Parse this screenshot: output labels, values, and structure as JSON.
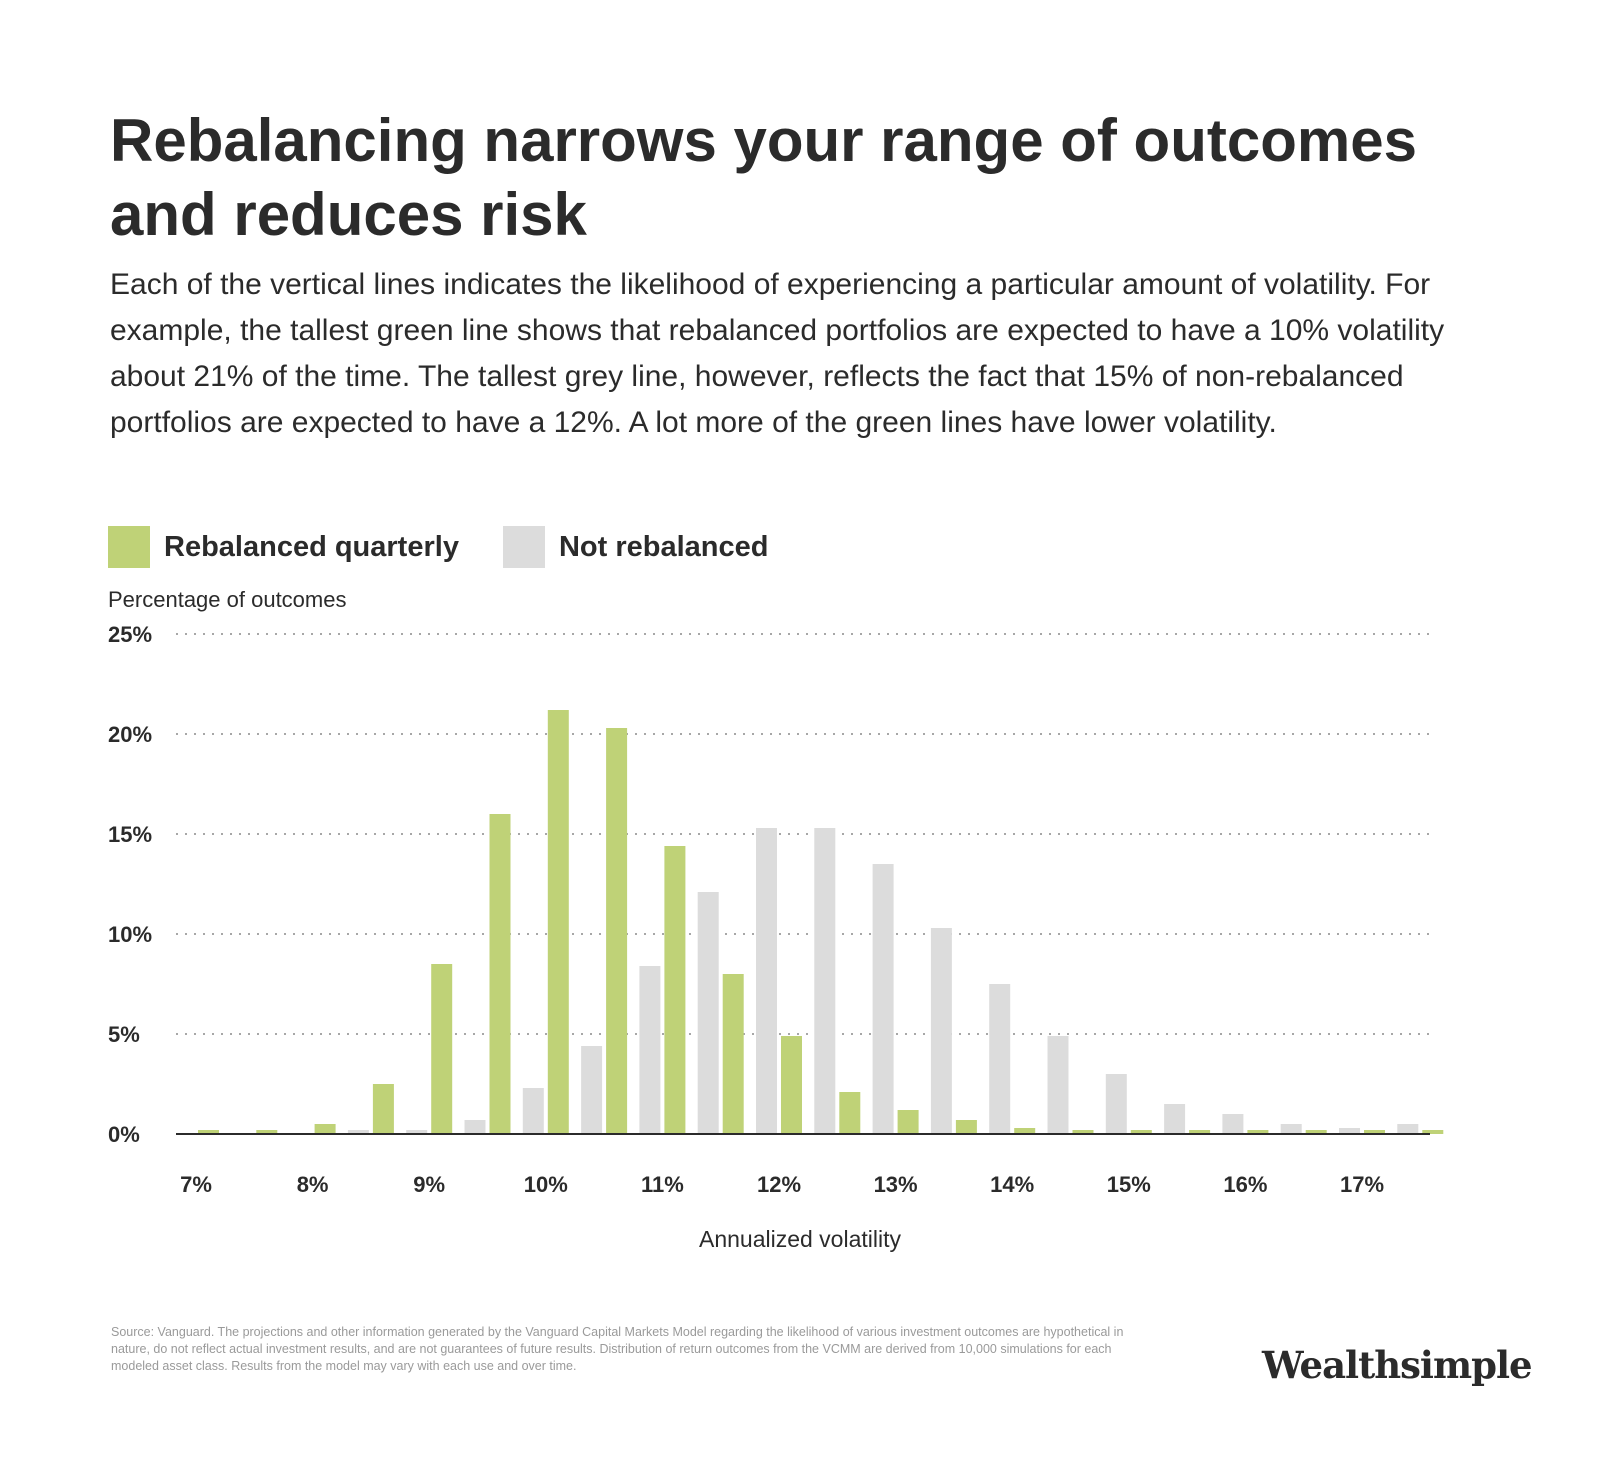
{
  "header": {
    "title": "Rebalancing narrows your range of outcomes and reduces risk",
    "subtitle": "Each of the vertical lines indicates the likelihood of experiencing a particular amount of volatility. For example, the tallest green line shows that rebalanced portfolios are expected to have a 10% volatility about 21% of the time. The tallest grey line, however, reflects the fact that 15% of non-rebalanced portfolios are expected to have a 12%. A lot more of the green lines have lower volatility."
  },
  "legend": {
    "rebalanced": "Rebalanced quarterly",
    "not_rebalanced": "Not rebalanced"
  },
  "footer": {
    "source": "Source: Vanguard. The projections and other information generated by the Vanguard Capital Markets Model regarding the likelihood of various investment outcomes are hypothetical in nature, do not reflect actual investment results, and are not guarantees of future results. Distribution of return outcomes from the VCMM are derived from 10,000 simulations for each modeled asset class. Results from the model may vary with each use and over time.",
    "brand": "Wealthsimple"
  },
  "colors": {
    "rebalanced": "#bfd277",
    "not_rebalanced": "#dcdcdc",
    "grid": "#8a8a8a",
    "axis": "#2b2b2b"
  },
  "chart_data": {
    "type": "bar",
    "ylabel": "Percentage of outcomes",
    "xlabel": "Annualized volatility",
    "ylim": [
      0,
      25
    ],
    "xlim": [
      6.9,
      17.9
    ],
    "yticks": [
      {
        "value": 0,
        "label": "0%"
      },
      {
        "value": 5,
        "label": "5%"
      },
      {
        "value": 10,
        "label": "10%"
      },
      {
        "value": 15,
        "label": "15%"
      },
      {
        "value": 20,
        "label": "20%"
      },
      {
        "value": 25,
        "label": "25%"
      }
    ],
    "xticks": [
      {
        "value": 7,
        "label": "7%"
      },
      {
        "value": 8,
        "label": "8%"
      },
      {
        "value": 9,
        "label": "9%"
      },
      {
        "value": 10,
        "label": "10%"
      },
      {
        "value": 11,
        "label": "11%"
      },
      {
        "value": 12,
        "label": "12%"
      },
      {
        "value": 13,
        "label": "13%"
      },
      {
        "value": 14,
        "label": "14%"
      },
      {
        "value": 15,
        "label": "15%"
      },
      {
        "value": 16,
        "label": "16%"
      },
      {
        "value": 17,
        "label": "17%"
      }
    ],
    "grid": "horizontal dotted",
    "legend_position": "top-left",
    "series": [
      {
        "name": "Rebalanced quarterly",
        "color": "#bfd277",
        "x": [
          7.0,
          7.5,
          8.0,
          8.5,
          9.0,
          9.5,
          10.0,
          10.5,
          11.0,
          11.5,
          12.0,
          12.5,
          13.0,
          13.5,
          14.0,
          14.5,
          15.0,
          15.5,
          16.0,
          16.5,
          17.0,
          17.5
        ],
        "values": [
          0.2,
          0.2,
          0.5,
          2.5,
          8.5,
          16.0,
          21.2,
          20.3,
          14.4,
          8.0,
          4.9,
          2.1,
          1.2,
          0.7,
          0.3,
          0.2,
          0.2,
          0.2,
          0.2,
          0.2,
          0.2,
          0.2
        ]
      },
      {
        "name": "Not rebalanced",
        "color": "#dcdcdc",
        "x": [
          8.5,
          9.0,
          9.5,
          10.0,
          10.5,
          11.0,
          11.5,
          12.0,
          12.5,
          13.0,
          13.5,
          14.0,
          14.5,
          15.0,
          15.5,
          16.0,
          16.5,
          17.0,
          17.5
        ],
        "values": [
          0.2,
          0.2,
          0.7,
          2.3,
          4.4,
          8.4,
          12.1,
          15.3,
          15.3,
          13.5,
          10.3,
          7.5,
          4.9,
          3.0,
          1.5,
          1.0,
          0.5,
          0.3,
          0.5
        ]
      }
    ]
  }
}
